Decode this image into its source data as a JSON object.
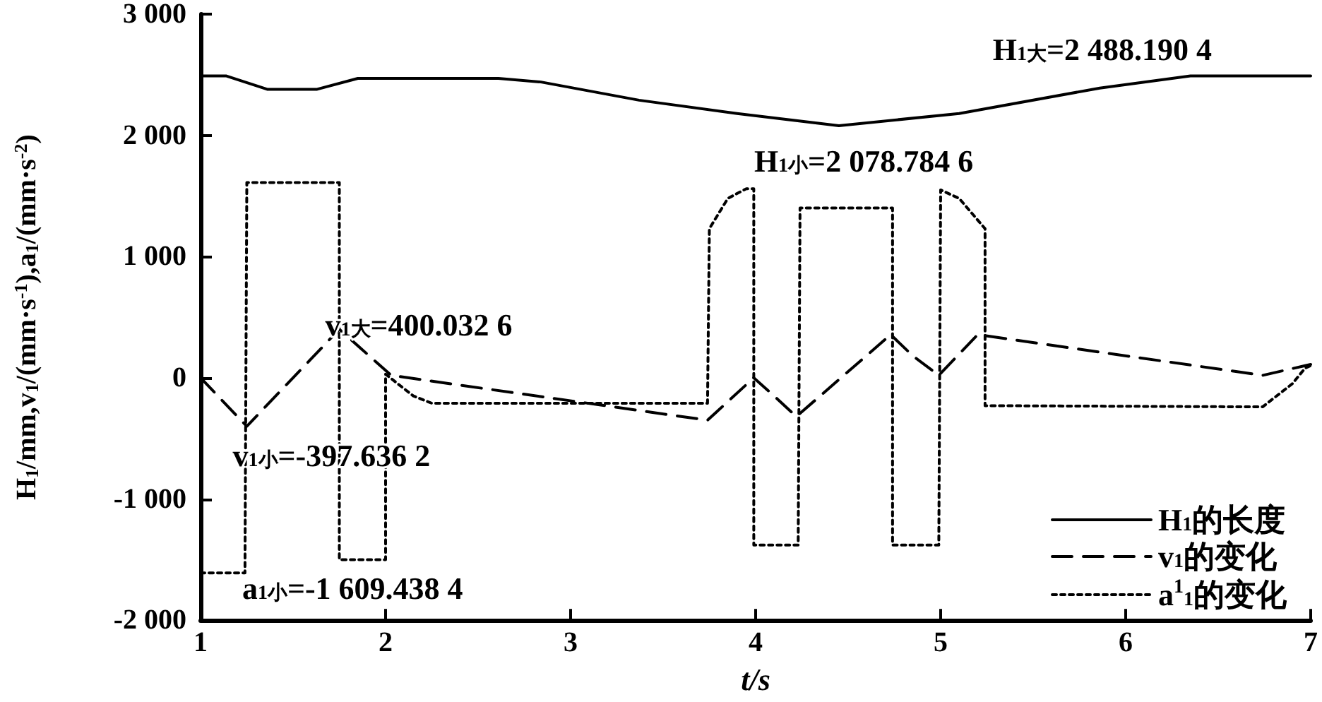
{
  "chart_data": {
    "type": "line",
    "xlabel": "t/s",
    "ylabel": "H$_{1}$/mm,v$_{1}$/(mm·s$^{-1}$),a$_{1}$/(mm·s$^{-2}$)",
    "xlim": [
      1,
      7
    ],
    "xticks": [
      1,
      2,
      3,
      4,
      5,
      6,
      7
    ],
    "ylim": [
      -2000,
      3000
    ],
    "yticks": [
      {
        "value": -2000,
        "label": "-2 000"
      },
      {
        "value": -1000,
        "label": "-1 000"
      },
      0,
      {
        "value": 1000,
        "label": "1 000"
      },
      {
        "value": 2000,
        "label": "2 000"
      },
      {
        "value": 3000,
        "label": "3 000"
      }
    ],
    "grid": false,
    "legend": "bottom right",
    "marker": "none",
    "series": [
      {
        "name": "H$_{1}$的长度",
        "color": "#000000",
        "line_style": "solid",
        "x": [
          1,
          1.14,
          1.36,
          1.63,
          1.85,
          2.61,
          2.84,
          3.37,
          3.9,
          4.45,
          5.1,
          5.86,
          6.35,
          7
        ],
        "values": [
          2490,
          2490,
          2380,
          2380,
          2470,
          2470,
          2440,
          2290,
          2180,
          2080,
          2180,
          2390,
          2490,
          2490
        ]
      },
      {
        "name": "v$_{1}$的变化",
        "color": "#000000",
        "line_style": "dashed",
        "x": [
          1,
          1.25,
          1.75,
          2.03,
          3.74,
          3.99,
          4.1,
          4.22,
          4.73,
          4.85,
          4.99,
          5.2,
          6.74,
          6.97,
          7
        ],
        "values": [
          0,
          -400,
          400,
          20,
          -350,
          0,
          -150,
          -320,
          356,
          180,
          20,
          356,
          20,
          100,
          110
        ]
      },
      {
        "name": "a$^{1}$$_{1}$的变化",
        "color": "#000000",
        "line_style": "dotted",
        "x": [
          1,
          1.24,
          1.25,
          1.75,
          1.75,
          2.0,
          2.0,
          2.15,
          2.25,
          3.74,
          3.75,
          3.85,
          3.95,
          3.99,
          3.99,
          4.23,
          4.24,
          4.74,
          4.74,
          4.99,
          5.0,
          5.1,
          5.24,
          5.24,
          6.74,
          6.9,
          6.97,
          7
        ],
        "values": [
          -1610,
          -1610,
          1610,
          1610,
          -1500,
          -1500,
          30,
          -150,
          -210,
          -210,
          1230,
          1480,
          1560,
          1560,
          -1380,
          -1380,
          1400,
          1400,
          -1380,
          -1380,
          1550,
          1480,
          1230,
          -230,
          -240,
          -50,
          80,
          100
        ]
      }
    ],
    "annotations": [
      {
        "text": "H$_{1大}$=2 488.190 4",
        "x": 6.35,
        "y": 2488.1904
      },
      {
        "text": "H$_{1小}$=2 078.784 6",
        "x": 4.45,
        "y": 2078.7846
      },
      {
        "text": "v$_{1大}$=400.032 6",
        "x": 1.75,
        "y": 400.0326
      },
      {
        "text": "v$_{1小}$=-397.636 2",
        "x": 1.25,
        "y": -397.6362
      },
      {
        "text": "a$_{1小}$=-1 609.438 4",
        "x": 1.24,
        "y": -1609.4384
      }
    ]
  }
}
